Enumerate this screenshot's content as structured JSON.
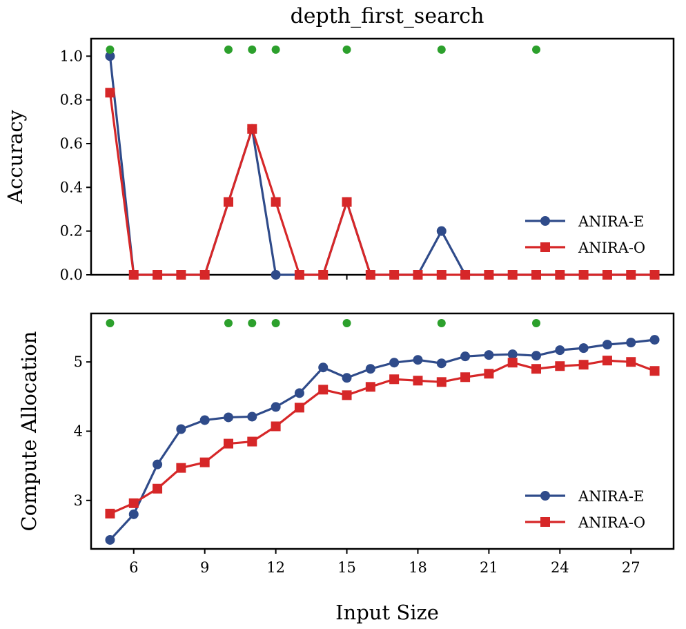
{
  "chart_data": {
    "type": "line",
    "title": "depth_first_search",
    "xlabel": "Input Size",
    "x_ticks": [
      6,
      9,
      12,
      15,
      18,
      21,
      24,
      27
    ],
    "xlim": [
      4.2,
      28.8
    ],
    "colors": {
      "anira_e": "#2f4b8a",
      "anira_o": "#d62728",
      "marker": "#2ca02c"
    },
    "marker_x": [
      5,
      10,
      11,
      12,
      15,
      19,
      23
    ],
    "subplots": [
      {
        "ylabel": "Accuracy",
        "ylim": [
          0.0,
          1.08
        ],
        "y_ticks": [
          "0.0",
          "0.2",
          "0.4",
          "0.6",
          "0.8",
          "1.0"
        ],
        "legend": "lower right",
        "marker_y": 1.03,
        "series": [
          {
            "name": "ANIRA-E",
            "marker": "circle",
            "x": [
              5,
              6,
              7,
              8,
              9,
              10,
              11,
              12,
              13,
              14,
              15,
              16,
              17,
              18,
              19,
              20,
              21,
              22,
              23,
              24,
              25,
              26,
              27,
              28
            ],
            "values": [
              1.0,
              0.0,
              0.0,
              0.0,
              0.0,
              0.333,
              0.667,
              0.0,
              0.0,
              0.0,
              0.333,
              0.0,
              0.0,
              0.0,
              0.2,
              0.0,
              0.0,
              0.0,
              0.0,
              0.0,
              0.0,
              0.0,
              0.0,
              0.0
            ]
          },
          {
            "name": "ANIRA-O",
            "marker": "square",
            "x": [
              5,
              6,
              7,
              8,
              9,
              10,
              11,
              12,
              13,
              14,
              15,
              16,
              17,
              18,
              19,
              20,
              21,
              22,
              23,
              24,
              25,
              26,
              27,
              28
            ],
            "values": [
              0.833,
              0.0,
              0.0,
              0.0,
              0.0,
              0.333,
              0.667,
              0.333,
              0.0,
              0.0,
              0.333,
              0.0,
              0.0,
              0.0,
              0.0,
              0.0,
              0.0,
              0.0,
              0.0,
              0.0,
              0.0,
              0.0,
              0.0,
              0.0
            ]
          }
        ]
      },
      {
        "ylabel": "Compute Allocation",
        "ylim": [
          2.3,
          5.7
        ],
        "y_ticks": [
          "3",
          "4",
          "5"
        ],
        "legend": "lower right",
        "marker_y": 5.56,
        "series": [
          {
            "name": "ANIRA-E",
            "marker": "circle",
            "x": [
              5,
              6,
              7,
              8,
              9,
              10,
              11,
              12,
              13,
              14,
              15,
              16,
              17,
              18,
              19,
              20,
              21,
              22,
              23,
              24,
              25,
              26,
              27,
              28
            ],
            "values": [
              2.43,
              2.8,
              3.52,
              4.03,
              4.16,
              4.2,
              4.21,
              4.35,
              4.55,
              4.92,
              4.77,
              4.9,
              4.99,
              5.03,
              4.98,
              5.08,
              5.1,
              5.11,
              5.09,
              5.17,
              5.2,
              5.25,
              5.28,
              5.32
            ]
          },
          {
            "name": "ANIRA-O",
            "marker": "square",
            "x": [
              5,
              6,
              7,
              8,
              9,
              10,
              11,
              12,
              13,
              14,
              15,
              16,
              17,
              18,
              19,
              20,
              21,
              22,
              23,
              24,
              25,
              26,
              27,
              28
            ],
            "values": [
              2.81,
              2.96,
              3.17,
              3.47,
              3.55,
              3.82,
              3.85,
              4.07,
              4.34,
              4.6,
              4.52,
              4.64,
              4.75,
              4.73,
              4.71,
              4.78,
              4.83,
              4.99,
              4.9,
              4.94,
              4.96,
              5.02,
              5.0,
              4.87
            ]
          }
        ]
      }
    ]
  }
}
